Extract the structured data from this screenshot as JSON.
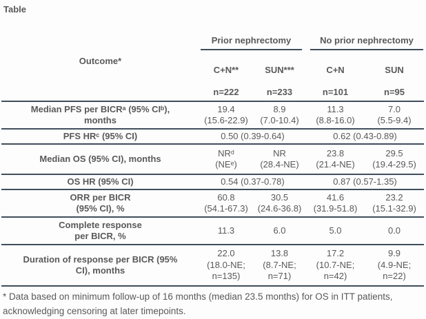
{
  "title": "Table",
  "table": {
    "outcome_header": "Outcome*",
    "group_headers": [
      "Prior nephrectomy",
      "No prior nephrectomy"
    ],
    "arm_headers": [
      "C+N**",
      "SUN***",
      "C+N",
      "SUN"
    ],
    "n_row": [
      "n=222",
      "n=233",
      "n=101",
      "n=95"
    ],
    "rows": [
      {
        "label": "Median PFS per BICRᵃ (95% CIᵇ),\nmonths",
        "values": [
          "19.4\n(15.6-22.9)",
          "8.9\n(7.0-10.4)",
          "11.3\n(8.8-16.0)",
          "7.0\n(5.5-9.4)"
        ]
      },
      {
        "label": "PFS HRᶜ (95% CI)",
        "values": [
          "0.50 (0.39-0.64)",
          "0.62 (0.43-0.89)"
        ]
      },
      {
        "label": "Median OS (95% CI), months",
        "values": [
          "NRᵈ\n(NEᵉ)",
          "NR\n(28.4-NE)",
          "23.8\n(21.4-NE)",
          "29.5\n(19.4-29.5)"
        ]
      },
      {
        "label": "OS HR (95% CI)",
        "values": [
          "0.54 (0.37-0.78)",
          "0.87 (0.57-1.35)"
        ]
      },
      {
        "label": "ORR per BICR\n(95% CI), %",
        "values": [
          "60.8\n(54.1-67.3)",
          "30.5\n(24.6-36.8)",
          "41.6\n(31.9-51.8)",
          "23.2\n(15.1-32.9)"
        ]
      },
      {
        "label": "Complete response\nper BICR, %",
        "values": [
          "11.3",
          "6.0",
          "5.0",
          "0.0"
        ]
      },
      {
        "label": "Duration of response per BICR (95%\nCI), months",
        "values": [
          "22.0\n(18.0-NE;\nn=135)",
          "13.8\n(8.7-NE;\nn=71)",
          "17.2\n(10.7-NE;\nn=42)",
          "9.9\n(4.9-NE;\nn=22)"
        ]
      }
    ]
  },
  "footnote": "* Data based on minimum follow-up of 16 months (median 23.5 months) for OS in ITT patients, acknowledging censoring at later timepoints.",
  "colors": {
    "text": "#595959",
    "border": "#3f4d5a",
    "background": "#fdfdfe"
  }
}
